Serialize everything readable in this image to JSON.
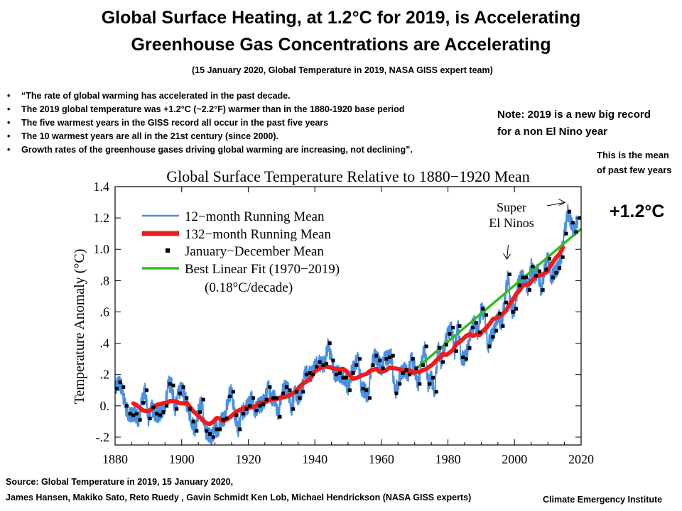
{
  "slide": {
    "title_line1": "Global Surface Heating, at 1.2°C for 2019,  is Accelerating",
    "title_line2": "Greenhouse Gas Concentrations are Accelerating",
    "subtitle": "(15 January 2020, Global Temperature in 2019, NASA GISS expert team)",
    "bullets": [
      "“The rate of global warming has accelerated in the past decade.",
      " The 2019 global temperature was +1.2°C (~2.2°F)  warmer than in the 1880-1920 base period",
      "The five warmest years in the GISS record all occur in the past five years",
      "The 10 warmest years are all in the 21st century (since 2000).",
      "Growth rates of the greenhouse gases driving global warming are increasing, not declining”."
    ],
    "note_line1": "Note: 2019 is a new big record",
    "note_line2": "for a non El Nino year",
    "mean_note_line1": "This is the mean",
    "mean_note_line2": "of past few years",
    "big_value": "+1.2°C",
    "source_line1": "Source: Global Temperature in 2019, 15 January 2020,",
    "source_line2": "James Hansen, Makiko Sato, Reto Ruedy , Gavin Schmidt Ken Lob, Michael Hendrickson (NASA GISS experts)",
    "credit": "Climate Emergency Institute"
  },
  "chart_data": {
    "type": "line",
    "title": "Global Surface Temperature Relative to 1880−1920 Mean",
    "ylabel": "Temperature Anomaly (°C)",
    "xlabel": "",
    "xlim": [
      1880,
      2020
    ],
    "ylim": [
      -0.25,
      1.4
    ],
    "x_ticks": [
      1880,
      1900,
      1920,
      1940,
      1960,
      1980,
      2000,
      2020
    ],
    "x_tick_labels": [
      "1880",
      "1900",
      "1920",
      "1940",
      "1960",
      "1980",
      "2000",
      "2020"
    ],
    "y_ticks": [
      -0.2,
      0.0,
      0.2,
      0.4,
      0.6,
      0.8,
      1.0,
      1.2,
      1.4
    ],
    "y_tick_labels": [
      "-.2",
      "0.",
      ".2",
      ".4",
      ".6",
      ".8",
      "1.0",
      "1.2",
      "1.4"
    ],
    "legend_position": "top-left",
    "legend": {
      "running12": "12−month Running Mean",
      "running132": "132−month Running Mean",
      "annual": "January−December Mean",
      "fit": "Best Linear Fit (1970−2019)",
      "fit_rate": "(0.18°C/decade)"
    },
    "colors": {
      "running12": "#4a90e2",
      "running132": "#ee1c1c",
      "annual": "#000000",
      "fit": "#33bb22"
    },
    "annotation": {
      "label_line1": "Super",
      "label_line2": "El Ninos",
      "targets": [
        [
          1998,
          0.91
        ],
        [
          2016,
          1.29
        ]
      ]
    },
    "series": [
      {
        "name": "January−December Mean",
        "x": [
          1880,
          1881,
          1882,
          1883,
          1884,
          1885,
          1886,
          1887,
          1888,
          1889,
          1890,
          1891,
          1892,
          1893,
          1894,
          1895,
          1896,
          1897,
          1898,
          1899,
          1900,
          1901,
          1902,
          1903,
          1904,
          1905,
          1906,
          1907,
          1908,
          1909,
          1910,
          1911,
          1912,
          1913,
          1914,
          1915,
          1916,
          1917,
          1918,
          1919,
          1920,
          1921,
          1922,
          1923,
          1924,
          1925,
          1926,
          1927,
          1928,
          1929,
          1930,
          1931,
          1932,
          1933,
          1934,
          1935,
          1936,
          1937,
          1938,
          1939,
          1940,
          1941,
          1942,
          1943,
          1944,
          1945,
          1946,
          1947,
          1948,
          1949,
          1950,
          1951,
          1952,
          1953,
          1954,
          1955,
          1956,
          1957,
          1958,
          1959,
          1960,
          1961,
          1962,
          1963,
          1964,
          1965,
          1966,
          1967,
          1968,
          1969,
          1970,
          1971,
          1972,
          1973,
          1974,
          1975,
          1976,
          1977,
          1978,
          1979,
          1980,
          1981,
          1982,
          1983,
          1984,
          1985,
          1986,
          1987,
          1988,
          1989,
          1990,
          1991,
          1992,
          1993,
          1994,
          1995,
          1996,
          1997,
          1998,
          1999,
          2000,
          2001,
          2002,
          2003,
          2004,
          2005,
          2006,
          2007,
          2008,
          2009,
          2010,
          2011,
          2012,
          2013,
          2014,
          2015,
          2016,
          2017,
          2018,
          2019
        ],
        "values": [
          0.11,
          0.15,
          0.12,
          0.0,
          -0.05,
          -0.06,
          -0.05,
          -0.09,
          0.02,
          0.1,
          -0.08,
          -0.01,
          -0.05,
          -0.06,
          -0.04,
          0.0,
          0.14,
          0.13,
          -0.02,
          0.08,
          0.12,
          0.05,
          -0.02,
          -0.1,
          -0.16,
          -0.04,
          0.04,
          -0.16,
          -0.18,
          -0.2,
          -0.15,
          -0.15,
          -0.09,
          -0.08,
          0.06,
          0.09,
          -0.06,
          -0.15,
          -0.05,
          -0.02,
          0.0,
          0.05,
          -0.03,
          0.0,
          0.01,
          0.04,
          0.12,
          0.05,
          0.05,
          -0.07,
          0.08,
          0.12,
          0.1,
          -0.02,
          0.09,
          0.05,
          0.09,
          0.2,
          0.21,
          0.2,
          0.25,
          0.28,
          0.26,
          0.27,
          0.4,
          0.29,
          0.2,
          0.21,
          0.18,
          0.18,
          0.1,
          0.21,
          0.26,
          0.3,
          0.11,
          0.1,
          0.05,
          0.26,
          0.32,
          0.29,
          0.24,
          0.3,
          0.31,
          0.32,
          0.08,
          0.14,
          0.21,
          0.23,
          0.2,
          0.3,
          0.24,
          0.14,
          0.26,
          0.38,
          0.14,
          0.18,
          0.09,
          0.37,
          0.28,
          0.39,
          0.46,
          0.5,
          0.35,
          0.51,
          0.31,
          0.3,
          0.37,
          0.5,
          0.53,
          0.47,
          0.62,
          0.58,
          0.38,
          0.44,
          0.48,
          0.59,
          0.51,
          0.66,
          0.84,
          0.6,
          0.62,
          0.77,
          0.82,
          0.82,
          0.74,
          0.89,
          0.83,
          0.86,
          0.74,
          0.87,
          0.94,
          0.82,
          0.85,
          0.88,
          0.95,
          1.1,
          1.24,
          1.17,
          1.11,
          1.2
        ]
      },
      {
        "name": "Best Linear Fit (1970−2019)",
        "x": [
          1970,
          2020
        ],
        "values": [
          0.23,
          1.13
        ]
      }
    ]
  }
}
